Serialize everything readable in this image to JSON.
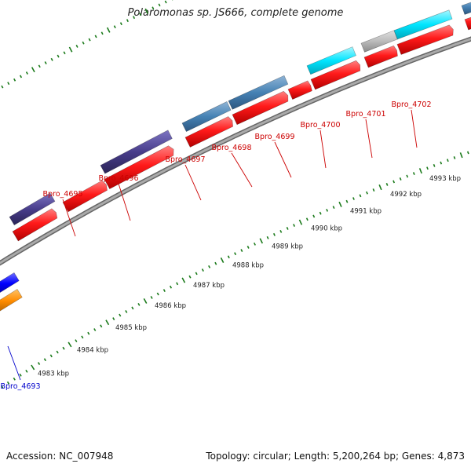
{
  "title": "Polaromonas sp. JS666, complete genome",
  "footer": {
    "accession": "Accession: NC_007948",
    "summary": "Topology: circular; Length: 5,200,264 bp; Genes: 4,873"
  },
  "colors": {
    "cds_red": "#ff1a1a",
    "steelblue": "#4682b4",
    "darkslateblue": "#483d8b",
    "cyan": "#00e5ff",
    "grey": "#bbbbbb",
    "blue": "#0000ff",
    "orange": "#ff8c00",
    "tick_green": "#1a7a1a",
    "backbone": "#888888",
    "label_red": "#cc0000",
    "label_blue": "#0000cc"
  },
  "scale": [
    {
      "label": "4983 kbp"
    },
    {
      "label": "4984 kbp"
    },
    {
      "label": "4985 kbp"
    },
    {
      "label": "4986 kbp"
    },
    {
      "label": "4987 kbp"
    },
    {
      "label": "4988 kbp"
    },
    {
      "label": "4989 kbp"
    },
    {
      "label": "4990 kbp"
    },
    {
      "label": "4991 kbp"
    },
    {
      "label": "4992 kbp"
    },
    {
      "label": "4993 kbp"
    }
  ],
  "gene_labels": [
    {
      "name": "Bpro_4695",
      "color": "label_red"
    },
    {
      "name": "Bpro_4696",
      "color": "label_red"
    },
    {
      "name": "Bpro_4697",
      "color": "label_red"
    },
    {
      "name": "Bpro_4698",
      "color": "label_red"
    },
    {
      "name": "Bpro_4699",
      "color": "label_red"
    },
    {
      "name": "Bpro_4700",
      "color": "label_red"
    },
    {
      "name": "Bpro_4701",
      "color": "label_red"
    },
    {
      "name": "Bpro_4702",
      "color": "label_red"
    },
    {
      "name": "Bpro_4693",
      "color": "label_blue"
    }
  ]
}
